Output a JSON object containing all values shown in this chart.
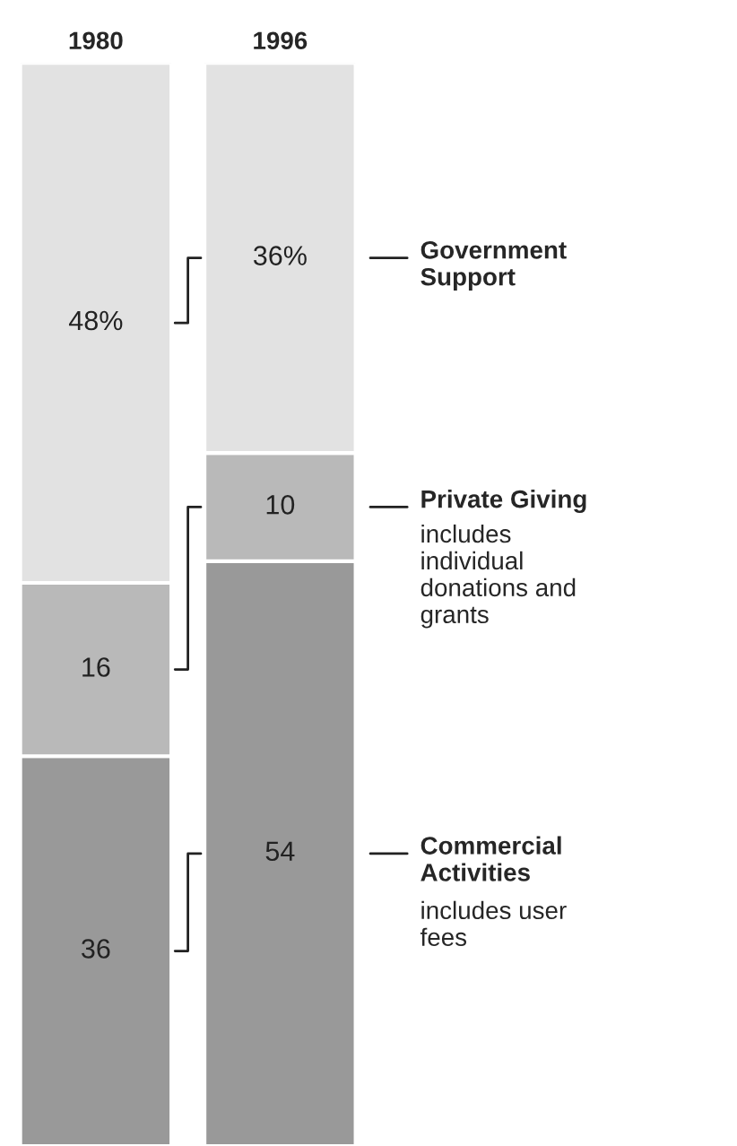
{
  "chart_data": {
    "type": "bar",
    "stacked": true,
    "categories": [
      "1980",
      "1996"
    ],
    "tick_labels": "x",
    "legend": false,
    "series": [
      {
        "name": "Commercial\nActivities",
        "color": "#999999",
        "values": [
          36,
          54
        ],
        "value_labels": [
          "36",
          "54"
        ]
      },
      {
        "name": "Private Giving",
        "color": "#b9b9b9",
        "values": [
          16,
          10
        ],
        "value_labels": [
          "16",
          "10"
        ]
      },
      {
        "name": "Government\nSupport",
        "color": "#e2e2e2",
        "values": [
          48,
          36
        ],
        "value_labels": [
          "48%",
          "36%"
        ]
      }
    ],
    "annotations": [
      "includes user\nfees",
      "includes\nindividual\ndonations and\ngrants"
    ]
  }
}
